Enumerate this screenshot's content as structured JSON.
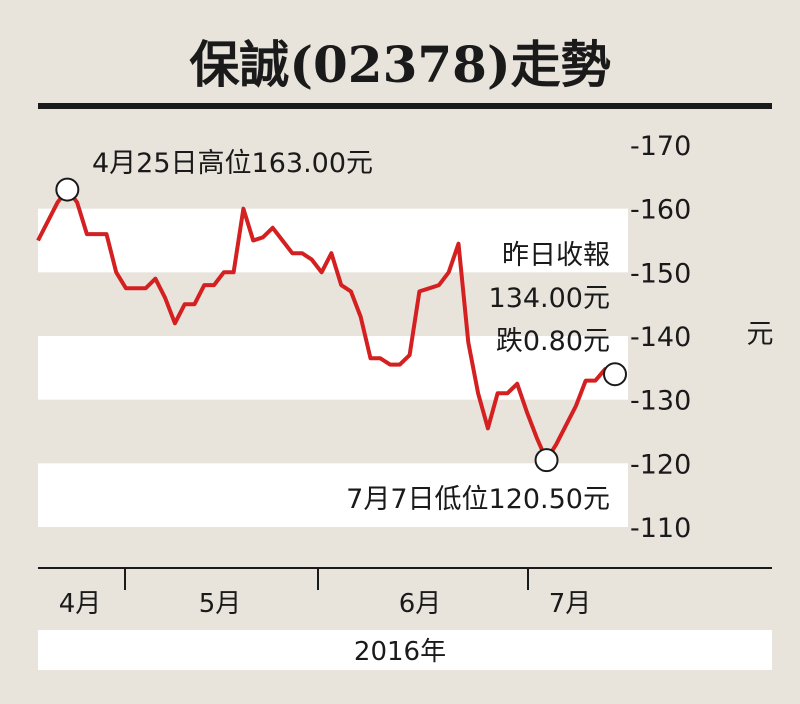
{
  "chart_data": {
    "type": "line",
    "title": "保誠(02378)走勢",
    "ylabel": "元",
    "xlabel": "2016年",
    "ylim": [
      110,
      170
    ],
    "yticks": [
      170,
      160,
      150,
      140,
      130,
      120,
      110
    ],
    "ytick_labels": [
      "-170",
      "-160",
      "-150",
      "-140",
      "-130",
      "-120",
      "-110"
    ],
    "months": [
      "4月",
      "5月",
      "6月",
      "7月"
    ],
    "series": [
      {
        "color": "#d42020",
        "values": [
          155.0,
          158.0,
          161.0,
          163.0,
          161.0,
          156.0,
          156.0,
          156.0,
          150.0,
          147.5,
          147.5,
          147.5,
          149.0,
          146.0,
          142.0,
          145.0,
          145.0,
          148.0,
          148.0,
          150.0,
          150.0,
          160.0,
          155.0,
          155.5,
          157.0,
          155.0,
          153.0,
          153.0,
          152.0,
          150.0,
          153.0,
          148.0,
          147.0,
          143.0,
          136.5,
          136.5,
          135.5,
          135.5,
          137.0,
          147.0,
          147.5,
          148.0,
          150.0,
          154.5,
          139.0,
          131.0,
          125.5,
          131.0,
          131.0,
          132.5,
          128.0,
          124.0,
          120.5,
          123.0,
          126.0,
          129.0,
          133.0,
          133.0,
          134.8,
          134.0
        ]
      }
    ],
    "annotations": {
      "high": {
        "label": "4月25日高位163.00元",
        "value": 163.0,
        "index": 3
      },
      "low": {
        "label": "7月7日低位120.50元",
        "value": 120.5,
        "index": 52
      },
      "last_line1": "昨日收報",
      "last_line2": "134.00元",
      "last_line3": "跌0.80元",
      "last_value": 134.0,
      "last_index": 59
    },
    "bands": [
      [
        150,
        160
      ],
      [
        130,
        140
      ],
      [
        110,
        120
      ]
    ],
    "background_color": "#e8e4dc",
    "band_color": "#ffffff",
    "line_color": "#d42020"
  }
}
